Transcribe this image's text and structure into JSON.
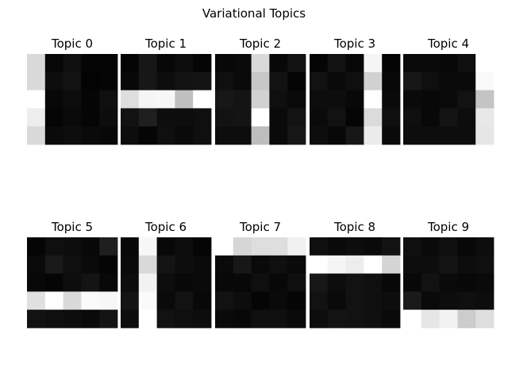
{
  "figure": {
    "title": "Variational Topics"
  },
  "chart_data": {
    "type": "heatmap",
    "title": "Variational Topics",
    "colormap": "gray",
    "value_range": [
      0,
      1
    ],
    "grid": false,
    "axes_visible": false,
    "panels": [
      {
        "title": "Topic 0",
        "values": [
          [
            0.85,
            0.03,
            0.06,
            0.02,
            0.02
          ],
          [
            0.85,
            0.05,
            0.07,
            0.01,
            0.02
          ],
          [
            1.0,
            0.03,
            0.05,
            0.02,
            0.06
          ],
          [
            0.93,
            0.02,
            0.04,
            0.02,
            0.05
          ],
          [
            0.85,
            0.04,
            0.05,
            0.04,
            0.03
          ]
        ]
      },
      {
        "title": "Topic 1",
        "values": [
          [
            0.02,
            0.09,
            0.03,
            0.05,
            0.02
          ],
          [
            0.03,
            0.09,
            0.05,
            0.07,
            0.08
          ],
          [
            0.87,
            0.96,
            0.97,
            0.75,
            1.0
          ],
          [
            0.07,
            0.12,
            0.05,
            0.05,
            0.06
          ],
          [
            0.05,
            0.02,
            0.06,
            0.04,
            0.06
          ]
        ]
      },
      {
        "title": "Topic 2",
        "values": [
          [
            0.03,
            0.04,
            0.85,
            0.03,
            0.07
          ],
          [
            0.06,
            0.04,
            0.78,
            0.07,
            0.02
          ],
          [
            0.09,
            0.08,
            0.82,
            0.06,
            0.04
          ],
          [
            0.07,
            0.08,
            1.0,
            0.04,
            0.08
          ],
          [
            0.05,
            0.05,
            0.74,
            0.04,
            0.09
          ]
        ]
      },
      {
        "title": "Topic 3",
        "values": [
          [
            0.02,
            0.07,
            0.03,
            0.96,
            0.02
          ],
          [
            0.07,
            0.04,
            0.06,
            0.82,
            0.03
          ],
          [
            0.05,
            0.05,
            0.03,
            1.0,
            0.04
          ],
          [
            0.04,
            0.07,
            0.02,
            0.86,
            0.06
          ],
          [
            0.05,
            0.03,
            0.09,
            0.92,
            0.04
          ]
        ]
      },
      {
        "title": "Topic 4",
        "values": [
          [
            0.04,
            0.04,
            0.03,
            0.06,
            1.0
          ],
          [
            0.09,
            0.06,
            0.04,
            0.04,
            0.98
          ],
          [
            0.04,
            0.03,
            0.04,
            0.07,
            0.77
          ],
          [
            0.06,
            0.03,
            0.08,
            0.05,
            0.91
          ],
          [
            0.05,
            0.05,
            0.05,
            0.05,
            0.9
          ]
        ]
      },
      {
        "title": "Topic 5",
        "values": [
          [
            0.02,
            0.06,
            0.05,
            0.03,
            0.12
          ],
          [
            0.04,
            0.1,
            0.06,
            0.04,
            0.02
          ],
          [
            0.03,
            0.02,
            0.05,
            0.08,
            0.03
          ],
          [
            0.88,
            1.0,
            0.85,
            0.98,
            0.97
          ],
          [
            0.07,
            0.06,
            0.05,
            0.04,
            0.08
          ]
        ]
      },
      {
        "title": "Topic 6",
        "values": [
          [
            0.03,
            0.97,
            0.03,
            0.05,
            0.02
          ],
          [
            0.04,
            0.85,
            0.08,
            0.05,
            0.04
          ],
          [
            0.05,
            0.95,
            0.05,
            0.03,
            0.04
          ],
          [
            0.08,
            0.98,
            0.04,
            0.07,
            0.03
          ],
          [
            0.05,
            1.0,
            0.07,
            0.06,
            0.05
          ]
        ]
      },
      {
        "title": "Topic 7",
        "values": [
          [
            1.0,
            0.84,
            0.87,
            0.87,
            0.94
          ],
          [
            0.04,
            0.09,
            0.04,
            0.06,
            0.04
          ],
          [
            0.03,
            0.03,
            0.06,
            0.03,
            0.06
          ],
          [
            0.07,
            0.05,
            0.02,
            0.04,
            0.02
          ],
          [
            0.04,
            0.03,
            0.06,
            0.06,
            0.04
          ]
        ]
      },
      {
        "title": "Topic 8",
        "values": [
          [
            0.06,
            0.04,
            0.05,
            0.04,
            0.07
          ],
          [
            1.0,
            0.96,
            0.93,
            1.0,
            0.83
          ],
          [
            0.09,
            0.05,
            0.07,
            0.06,
            0.03
          ],
          [
            0.07,
            0.04,
            0.07,
            0.06,
            0.05
          ],
          [
            0.05,
            0.08,
            0.07,
            0.06,
            0.04
          ]
        ]
      },
      {
        "title": "Topic 9",
        "values": [
          [
            0.06,
            0.04,
            0.06,
            0.03,
            0.05
          ],
          [
            0.05,
            0.05,
            0.08,
            0.05,
            0.06
          ],
          [
            0.03,
            0.07,
            0.04,
            0.03,
            0.04
          ],
          [
            0.1,
            0.04,
            0.05,
            0.06,
            0.05
          ],
          [
            1.0,
            0.9,
            0.95,
            0.8,
            0.87
          ]
        ]
      }
    ]
  }
}
